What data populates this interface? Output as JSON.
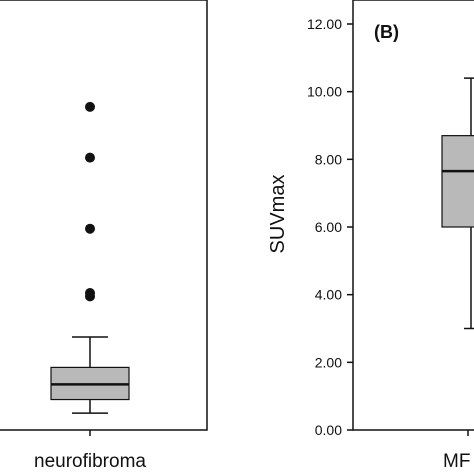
{
  "chart_data": [
    {
      "type": "box",
      "panel_label": "",
      "categories": [
        "neurofibroma"
      ],
      "ylabel": "",
      "box": {
        "whisker_low": 0.5,
        "q1": 0.9,
        "median": 1.35,
        "q3": 1.85,
        "whisker_high": 2.75
      },
      "outliers": [
        3.95,
        4.05,
        5.95,
        8.05,
        9.55
      ],
      "colors": {
        "box_fill": "#b9b9b9",
        "line": "#111111",
        "outlier": "#111111"
      }
    },
    {
      "type": "box",
      "panel_label": "(B)",
      "categories": [
        "MF"
      ],
      "ylabel": "SUVmax",
      "yticks": [
        "0.00",
        "2.00",
        "4.00",
        "6.00",
        "8.00",
        "10.00",
        "12.00"
      ],
      "ylim": [
        0,
        12
      ],
      "box": {
        "whisker_low": 3.0,
        "q1": 6.0,
        "median": 7.65,
        "q3": 8.7,
        "whisker_high": 10.4
      },
      "outliers": [],
      "colors": {
        "box_fill": "#b9b9b9",
        "line": "#111111",
        "outlier": "#111111"
      }
    }
  ]
}
